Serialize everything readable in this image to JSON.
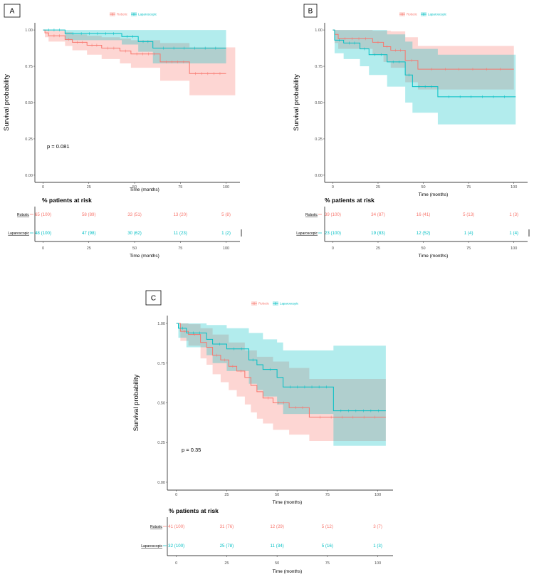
{
  "colors": {
    "robotic": "#F8766D",
    "laparoscopic": "#00BFC4",
    "robotic_fill": "#F8766D",
    "laparoscopic_fill": "#00BFC4"
  },
  "legend": {
    "robotic": "Robotic",
    "laparoscopic": "Laparoscopic"
  },
  "risk_title": "% patients at risk",
  "chart_data": [
    {
      "panel": "A",
      "type": "line",
      "title": "A",
      "xlabel": "Time (months)",
      "ylabel": "Survival probability",
      "xlim": [
        0,
        100
      ],
      "ylim": [
        0,
        1
      ],
      "xticks": [
        "0",
        "25",
        "50",
        "75",
        "100"
      ],
      "yticks": [
        "0.00",
        "0.25",
        "0.50",
        "0.75",
        "1.00"
      ],
      "pvalue": "p = 0.081",
      "series": [
        {
          "name": "Robotic",
          "steps": [
            [
              0,
              1.0
            ],
            [
              1,
              0.98
            ],
            [
              3,
              0.96
            ],
            [
              12,
              0.935
            ],
            [
              16,
              0.915
            ],
            [
              24,
              0.895
            ],
            [
              32,
              0.875
            ],
            [
              42,
              0.855
            ],
            [
              48,
              0.835
            ],
            [
              64,
              0.78
            ],
            [
              80,
              0.7
            ],
            [
              100,
              0.7
            ]
          ],
          "lower": [
            [
              0,
              1.0
            ],
            [
              1,
              0.95
            ],
            [
              3,
              0.92
            ],
            [
              12,
              0.89
            ],
            [
              16,
              0.86
            ],
            [
              24,
              0.83
            ],
            [
              32,
              0.8
            ],
            [
              42,
              0.77
            ],
            [
              48,
              0.74
            ],
            [
              64,
              0.65
            ],
            [
              80,
              0.55
            ],
            [
              105,
              0.55
            ]
          ],
          "upper": [
            [
              0,
              1.0
            ],
            [
              1,
              1.0
            ],
            [
              3,
              0.995
            ],
            [
              12,
              0.985
            ],
            [
              16,
              0.97
            ],
            [
              24,
              0.96
            ],
            [
              32,
              0.95
            ],
            [
              42,
              0.94
            ],
            [
              48,
              0.93
            ],
            [
              64,
              0.91
            ],
            [
              80,
              0.88
            ],
            [
              105,
              0.88
            ]
          ]
        },
        {
          "name": "Laparoscopic",
          "steps": [
            [
              0,
              1.0
            ],
            [
              12,
              0.975
            ],
            [
              43,
              0.955
            ],
            [
              52,
              0.92
            ],
            [
              60,
              0.875
            ],
            [
              100,
              0.875
            ]
          ],
          "lower": [
            [
              0,
              1.0
            ],
            [
              12,
              0.93
            ],
            [
              43,
              0.9
            ],
            [
              52,
              0.85
            ],
            [
              60,
              0.77
            ],
            [
              100,
              0.77
            ]
          ],
          "upper": [
            [
              0,
              1.0
            ],
            [
              100,
              1.0
            ]
          ]
        }
      ],
      "risk_table": {
        "times": [
          "0",
          "25",
          "50",
          "75",
          "100"
        ],
        "rows": [
          {
            "group": "Robotic",
            "values": [
              "65 (100)",
              "58 (89)",
              "33 (51)",
              "13 (20)",
              "5 (8)"
            ]
          },
          {
            "group": "Laparoscopic",
            "values": [
              "48 (100)",
              "47 (98)",
              "30 (62)",
              "11 (23)",
              "1 (2)"
            ]
          }
        ]
      }
    },
    {
      "panel": "B",
      "type": "line",
      "title": "B",
      "xlabel": "Time (months)",
      "ylabel": "Survival probability",
      "xlim": [
        0,
        100
      ],
      "ylim": [
        0,
        1
      ],
      "xticks": [
        "0",
        "25",
        "50",
        "75",
        "100"
      ],
      "yticks": [
        "0.00",
        "0.25",
        "0.50",
        "0.75",
        "1.00"
      ],
      "series": [
        {
          "name": "Robotic",
          "steps": [
            [
              0,
              1.0
            ],
            [
              1,
              0.97
            ],
            [
              3,
              0.94
            ],
            [
              22,
              0.915
            ],
            [
              28,
              0.885
            ],
            [
              32,
              0.86
            ],
            [
              40,
              0.79
            ],
            [
              47,
              0.73
            ],
            [
              100,
              0.73
            ]
          ],
          "lower": [
            [
              0,
              1.0
            ],
            [
              1,
              0.91
            ],
            [
              3,
              0.87
            ],
            [
              22,
              0.83
            ],
            [
              28,
              0.78
            ],
            [
              32,
              0.74
            ],
            [
              40,
              0.64
            ],
            [
              47,
              0.59
            ],
            [
              100,
              0.59
            ]
          ],
          "upper": [
            [
              0,
              1.0
            ],
            [
              22,
              0.995
            ],
            [
              32,
              0.99
            ],
            [
              40,
              0.95
            ],
            [
              47,
              0.89
            ],
            [
              100,
              0.89
            ]
          ]
        },
        {
          "name": "Laparoscopic",
          "steps": [
            [
              0,
              1.0
            ],
            [
              1,
              0.93
            ],
            [
              6,
              0.91
            ],
            [
              15,
              0.87
            ],
            [
              20,
              0.83
            ],
            [
              30,
              0.78
            ],
            [
              40,
              0.69
            ],
            [
              44,
              0.61
            ],
            [
              58,
              0.54
            ],
            [
              101,
              0.54
            ]
          ],
          "lower": [
            [
              0,
              1.0
            ],
            [
              1,
              0.84
            ],
            [
              6,
              0.8
            ],
            [
              15,
              0.75
            ],
            [
              20,
              0.69
            ],
            [
              30,
              0.61
            ],
            [
              40,
              0.5
            ],
            [
              44,
              0.43
            ],
            [
              58,
              0.35
            ],
            [
              101,
              0.35
            ]
          ],
          "upper": [
            [
              0,
              1.0
            ],
            [
              30,
              0.97
            ],
            [
              40,
              0.92
            ],
            [
              44,
              0.87
            ],
            [
              58,
              0.83
            ],
            [
              101,
              0.83
            ]
          ]
        }
      ],
      "risk_table": {
        "times": [
          "0",
          "25",
          "50",
          "75",
          "100"
        ],
        "rows": [
          {
            "group": "Robotic",
            "values": [
              "39 (100)",
              "34 (87)",
              "16 (41)",
              "5 (13)",
              "1 (3)"
            ]
          },
          {
            "group": "Laparoscopic",
            "values": [
              "23 (100)",
              "19 (83)",
              "12 (52)",
              "1 (4)",
              "1 (4)"
            ]
          }
        ]
      }
    },
    {
      "panel": "C",
      "type": "line",
      "title": "C",
      "xlabel": "Time (months)",
      "ylabel": "Survival probability",
      "xlim": [
        0,
        100
      ],
      "ylim": [
        0,
        1
      ],
      "xticks": [
        "0",
        "25",
        "50",
        "75",
        "100"
      ],
      "yticks": [
        "0.00",
        "0.25",
        "0.50",
        "0.75",
        "1.00"
      ],
      "pvalue": "p = 0.35",
      "series": [
        {
          "name": "Robotic",
          "steps": [
            [
              0,
              1.0
            ],
            [
              2,
              0.95
            ],
            [
              6,
              0.93
            ],
            [
              12,
              0.88
            ],
            [
              15,
              0.85
            ],
            [
              18,
              0.8
            ],
            [
              22,
              0.77
            ],
            [
              26,
              0.73
            ],
            [
              30,
              0.7
            ],
            [
              34,
              0.66
            ],
            [
              37,
              0.61
            ],
            [
              40,
              0.57
            ],
            [
              43,
              0.53
            ],
            [
              48,
              0.5
            ],
            [
              56,
              0.47
            ],
            [
              66,
              0.41
            ],
            [
              104,
              0.41
            ]
          ],
          "lower": [
            [
              0,
              1.0
            ],
            [
              2,
              0.89
            ],
            [
              6,
              0.86
            ],
            [
              12,
              0.78
            ],
            [
              15,
              0.74
            ],
            [
              18,
              0.68
            ],
            [
              22,
              0.63
            ],
            [
              26,
              0.58
            ],
            [
              30,
              0.54
            ],
            [
              34,
              0.49
            ],
            [
              37,
              0.44
            ],
            [
              40,
              0.4
            ],
            [
              43,
              0.37
            ],
            [
              48,
              0.33
            ],
            [
              56,
              0.3
            ],
            [
              66,
              0.26
            ],
            [
              104,
              0.26
            ]
          ],
          "upper": [
            [
              0,
              1.0
            ],
            [
              6,
              0.995
            ],
            [
              12,
              0.97
            ],
            [
              18,
              0.93
            ],
            [
              26,
              0.88
            ],
            [
              34,
              0.83
            ],
            [
              40,
              0.79
            ],
            [
              48,
              0.76
            ],
            [
              56,
              0.72
            ],
            [
              66,
              0.65
            ],
            [
              104,
              0.65
            ]
          ]
        },
        {
          "name": "Laparoscopic",
          "steps": [
            [
              0,
              1.0
            ],
            [
              1,
              0.97
            ],
            [
              5,
              0.94
            ],
            [
              15,
              0.9
            ],
            [
              18,
              0.87
            ],
            [
              25,
              0.84
            ],
            [
              36,
              0.77
            ],
            [
              40,
              0.74
            ],
            [
              43,
              0.71
            ],
            [
              50,
              0.66
            ],
            [
              53,
              0.6
            ],
            [
              78,
              0.45
            ],
            [
              104,
              0.45
            ]
          ],
          "lower": [
            [
              0,
              1.0
            ],
            [
              1,
              0.91
            ],
            [
              5,
              0.85
            ],
            [
              15,
              0.8
            ],
            [
              18,
              0.75
            ],
            [
              25,
              0.7
            ],
            [
              36,
              0.62
            ],
            [
              40,
              0.58
            ],
            [
              43,
              0.54
            ],
            [
              50,
              0.49
            ],
            [
              53,
              0.43
            ],
            [
              78,
              0.23
            ],
            [
              104,
              0.23
            ]
          ],
          "upper": [
            [
              0,
              1.0
            ],
            [
              15,
              0.99
            ],
            [
              25,
              0.97
            ],
            [
              36,
              0.94
            ],
            [
              43,
              0.9
            ],
            [
              50,
              0.88
            ],
            [
              53,
              0.83
            ],
            [
              78,
              0.86
            ],
            [
              104,
              0.86
            ]
          ]
        }
      ],
      "risk_table": {
        "times": [
          "0",
          "25",
          "50",
          "75",
          "100"
        ],
        "rows": [
          {
            "group": "Robotic",
            "values": [
              "41 (100)",
              "31 (76)",
              "12 (29)",
              "5 (12)",
              "3 (7)"
            ]
          },
          {
            "group": "Laparoscopic",
            "values": [
              "32 (100)",
              "25 (78)",
              "11 (34)",
              "5 (16)",
              "1 (3)"
            ]
          }
        ]
      }
    }
  ]
}
